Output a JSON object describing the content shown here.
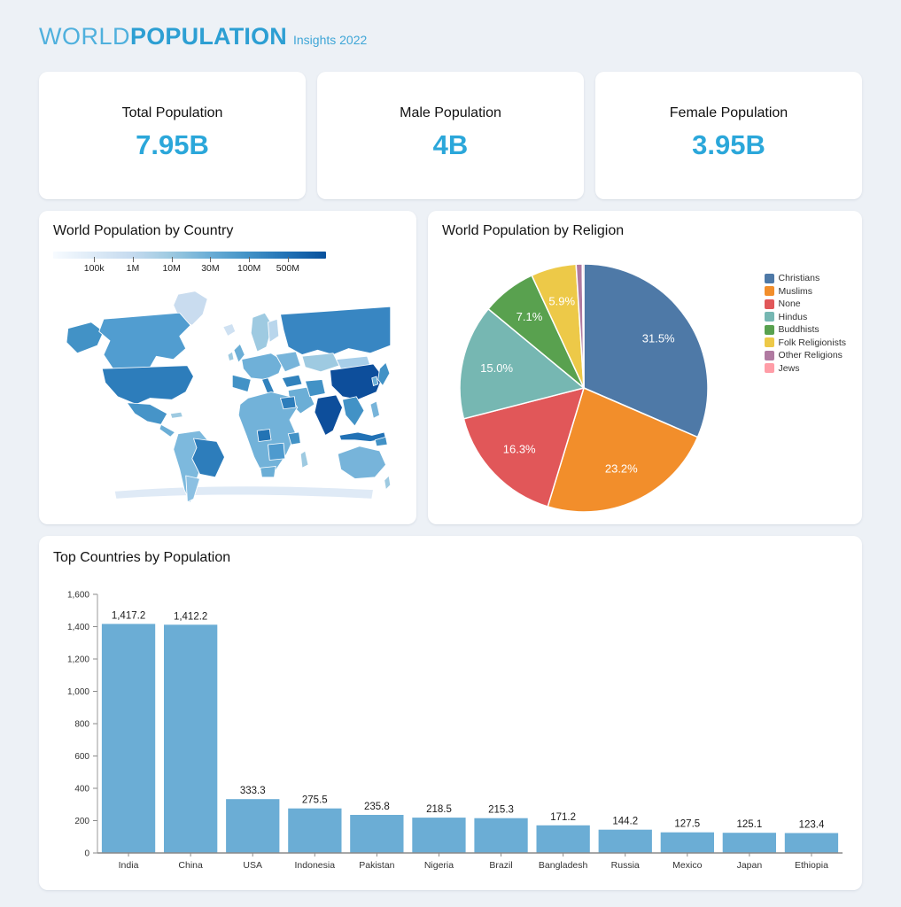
{
  "header": {
    "brand_light": "WORLD",
    "brand_bold": "POPULATION",
    "subtitle": "Insights 2022"
  },
  "stats": [
    {
      "label": "Total Population",
      "value": "7.95B"
    },
    {
      "label": "Male Population",
      "value": "4B"
    },
    {
      "label": "Female Population",
      "value": "3.95B"
    }
  ],
  "accent_color": "#2ba7da",
  "chart_data": [
    {
      "type": "heatmap",
      "subtype": "choropleth-world-map",
      "title": "World Population by Country",
      "colorbar_ticks": [
        "100k",
        "1M",
        "10M",
        "30M",
        "100M",
        "500M"
      ],
      "colorbar_palette": [
        "#f7fbff",
        "#deebf7",
        "#c6dbef",
        "#9ecae1",
        "#6baed6",
        "#4292c6",
        "#2171b5",
        "#08519c"
      ],
      "regions": {
        "greenland": "#c9dcef",
        "iceland": "#cfe1f2",
        "alaska": "#4292c6",
        "canada": "#519dd0",
        "usa": "#2d7dbb",
        "mexico": "#4694c8",
        "central_america": "#6baed6",
        "cuba": "#9ecae1",
        "south_america_west": "#7db9dd",
        "brazil": "#2d7dbb",
        "argentina": "#8cc0e2",
        "uk": "#6baed6",
        "ireland": "#9ecae1",
        "scandinavia": "#9ecae1",
        "finland": "#b9d6ec",
        "europe_main": "#6fb0d8",
        "iberia": "#4292c6",
        "italy": "#3182bd",
        "east_europe": "#77b4da",
        "turkey": "#3182bd",
        "middle_east": "#6baed6",
        "iran": "#4292c6",
        "russia": "#3886c2",
        "central_asia": "#9ecae1",
        "mongolia": "#a7cee9",
        "china": "#0d4e9b",
        "korea": "#6baed6",
        "japan": "#4292c6",
        "india": "#0d4e9b",
        "se_asia": "#4292c6",
        "philippines": "#77b4da",
        "indonesia": "#2171b5",
        "new_guinea": "#4292c6",
        "africa_main": "#72b2d9",
        "egypt": "#2d7dbb",
        "nigeria": "#2373b4",
        "ethiopia": "#4292c6",
        "drc": "#4e9ace",
        "south_africa": "#6baed6",
        "madagascar": "#9ecae1",
        "australia": "#77b4da",
        "new_zealand": "#9ecae1",
        "antarctica": "#dfeaf6"
      }
    },
    {
      "type": "pie",
      "title": "World Population by Religion",
      "legend_position": "right",
      "label_threshold_pct": 5,
      "series": [
        {
          "label": "Christians",
          "value": 31.5,
          "color": "#4e79a7"
        },
        {
          "label": "Muslims",
          "value": 23.2,
          "color": "#f28e2b"
        },
        {
          "label": "None",
          "value": 16.3,
          "color": "#e15759"
        },
        {
          "label": "Hindus",
          "value": 15.0,
          "color": "#76b7b2"
        },
        {
          "label": "Buddhists",
          "value": 7.1,
          "color": "#59a14f"
        },
        {
          "label": "Folk Religionists",
          "value": 5.9,
          "color": "#edc948"
        },
        {
          "label": "Other Religions",
          "value": 0.8,
          "color": "#b07aa1"
        },
        {
          "label": "Jews",
          "value": 0.2,
          "color": "#ff9da7"
        }
      ],
      "shown_labels": [
        "31.5%",
        "23.2%",
        "16.3%",
        "15.0%",
        "7.1%",
        "5.9%"
      ]
    },
    {
      "type": "bar",
      "title": "Top Countries by Population",
      "categories": [
        "India",
        "China",
        "USA",
        "Indonesia",
        "Pakistan",
        "Nigeria",
        "Brazil",
        "Bangladesh",
        "Russia",
        "Mexico",
        "Japan",
        "Ethiopia"
      ],
      "values": [
        1417.2,
        1412.2,
        333.3,
        275.5,
        235.8,
        218.5,
        215.3,
        171.2,
        144.2,
        127.5,
        125.1,
        123.4
      ],
      "xlabel": "",
      "ylabel": "",
      "ylim": [
        0,
        1600
      ],
      "ytick_step": 200,
      "grid": false,
      "bar_color": "#6badd5"
    }
  ]
}
